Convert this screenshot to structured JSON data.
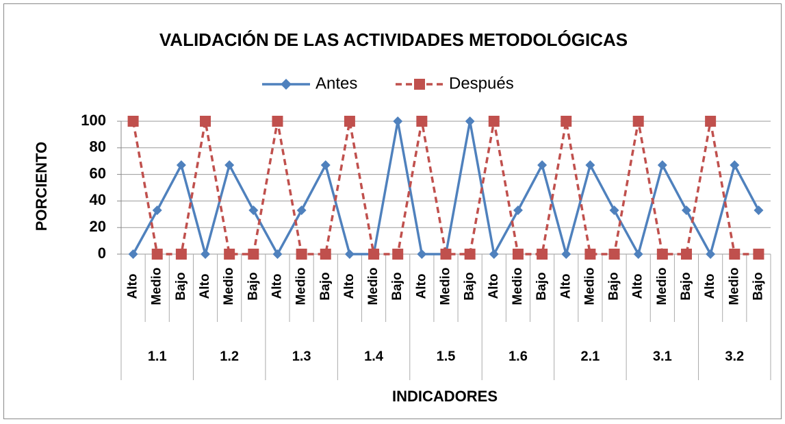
{
  "chart_data": {
    "type": "line",
    "title": "VALIDACIÓN DE LAS ACTIVIDADES METODOLÓGICAS",
    "xlabel": "INDICADORES",
    "ylabel": "PORCIENTO",
    "categories": [
      "Alto",
      "Medio",
      "Bajo",
      "Alto",
      "Medio",
      "Bajo",
      "Alto",
      "Medio",
      "Bajo",
      "Alto",
      "Medio",
      "Bajo",
      "Alto",
      "Medio",
      "Bajo",
      "Alto",
      "Medio",
      "Bajo",
      "Alto",
      "Medio",
      "Bajo",
      "Alto",
      "Medio",
      "Bajo",
      "Alto",
      "Medio",
      "Bajo"
    ],
    "groups": [
      "1.1",
      "1.2",
      "1.3",
      "1.4",
      "1.5",
      "1.6",
      "2.1",
      "3.1",
      "3.2"
    ],
    "series": [
      {
        "name": "Antes",
        "color": "#4f81bd",
        "marker": "diamond",
        "line_style": "solid",
        "values": [
          0,
          33,
          67,
          0,
          67,
          33,
          0,
          33,
          67,
          0,
          0,
          100,
          0,
          0,
          100,
          0,
          33,
          67,
          0,
          67,
          33,
          0,
          67,
          33,
          0,
          67,
          33
        ]
      },
      {
        "name": "Después",
        "color": "#c0504d",
        "marker": "square",
        "line_style": "dashed",
        "values": [
          100,
          0,
          0,
          100,
          0,
          0,
          100,
          0,
          0,
          100,
          0,
          0,
          100,
          0,
          0,
          100,
          0,
          0,
          100,
          0,
          0,
          100,
          0,
          0,
          100,
          0,
          0
        ]
      }
    ],
    "ylim": [
      0,
      100
    ],
    "yticks": [
      0,
      20,
      40,
      60,
      80,
      100
    ],
    "grid": true,
    "legend": "top"
  }
}
